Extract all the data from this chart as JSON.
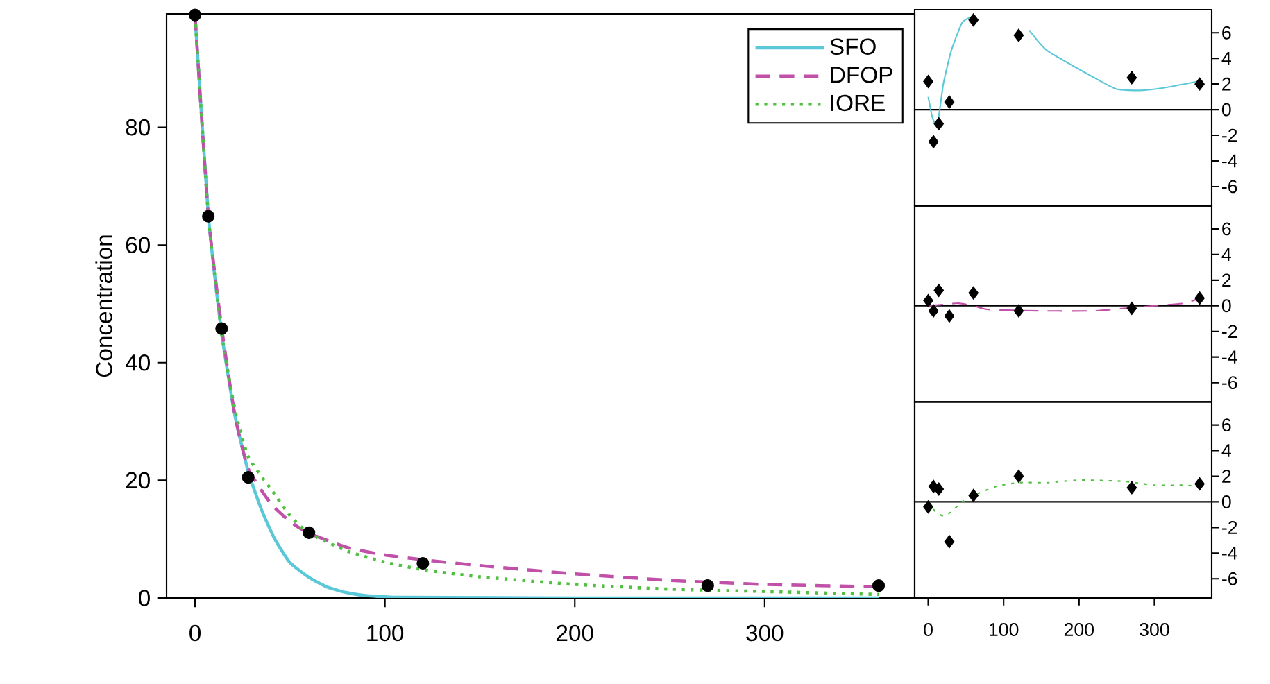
{
  "chart_data": [
    {
      "type": "line",
      "ylabel": "Concentration",
      "xlim": [
        -15,
        379
      ],
      "ylim": [
        0,
        99.3
      ],
      "xticks": [
        0,
        100,
        200,
        300
      ],
      "yticks": [
        0,
        20,
        40,
        60,
        80
      ],
      "legend": "top right",
      "series": [
        {
          "type": "scatter",
          "color": "#000000",
          "marker": "circle",
          "x": [
            0,
            7,
            14,
            28,
            60,
            120,
            270,
            360
          ],
          "values": [
            99.1,
            64.9,
            45.8,
            20.5,
            11.1,
            5.9,
            2.1,
            2.1
          ]
        },
        {
          "name": "SFO",
          "color": "#5bc8d8",
          "line_style": "solid",
          "x": [
            0,
            7,
            14,
            21,
            28,
            35,
            42,
            50,
            60,
            70,
            80,
            90,
            100,
            110,
            200,
            300,
            360
          ],
          "values": [
            99,
            65,
            45,
            31,
            21.5,
            15,
            10,
            6,
            3.5,
            1.8,
            0.9,
            0.4,
            0.2,
            0.1,
            0,
            0,
            0
          ]
        },
        {
          "name": "DFOP",
          "color": "#c050a8",
          "line_style": "dashed",
          "x": [
            0,
            7,
            14,
            21,
            28,
            40,
            50,
            60,
            80,
            100,
            120,
            150,
            200,
            250,
            300,
            360
          ],
          "values": [
            99,
            65,
            46,
            31,
            22,
            16,
            13,
            11,
            8.6,
            7.3,
            6.5,
            5.5,
            4.1,
            3,
            2.3,
            1.9
          ]
        },
        {
          "name": "IORE",
          "color": "#50c040",
          "line_style": "dotted",
          "x": [
            0,
            7,
            14,
            21,
            28,
            40,
            50,
            60,
            80,
            100,
            120,
            150,
            200,
            250,
            300,
            360
          ],
          "values": [
            99,
            65,
            45,
            32,
            24,
            18.5,
            14,
            11,
            8,
            6.1,
            4.8,
            3.6,
            2.3,
            1.5,
            1.1,
            0.6
          ]
        }
      ]
    },
    {
      "type": "line",
      "xlim": [
        -18,
        376
      ],
      "ylim": [
        -7.5,
        7.8
      ],
      "yticks": [
        -6,
        -4,
        -2,
        0,
        2,
        4,
        6
      ],
      "tick_labels": "y",
      "ref_lines": [
        {
          "axis": "y",
          "value": 0,
          "color": "#000000"
        }
      ],
      "series": [
        {
          "type": "scatter",
          "color": "#000000",
          "marker": "diamond",
          "x": [
            0,
            7,
            14,
            28,
            60,
            120,
            270,
            360
          ],
          "values": [
            2.2,
            -2.5,
            -1.1,
            0.6,
            7.0,
            5.8,
            2.5,
            2.0
          ]
        },
        {
          "color": "#5bc8d8",
          "line_style": "solid",
          "x": [
            0,
            5,
            10,
            14,
            20,
            30,
            45,
            60,
            75,
            106,
            134,
            158,
            220,
            250,
            281,
            312,
            357
          ],
          "values": [
            1.0,
            -0.5,
            -1.2,
            -0.5,
            2,
            4.5,
            6.8,
            7.3,
            null,
            null,
            6.2,
            4.6,
            2.5,
            1.6,
            1.5,
            1.7,
            2.2
          ]
        }
      ]
    },
    {
      "type": "line",
      "xlim": [
        -18,
        376
      ],
      "ylim": [
        -7.5,
        7.8
      ],
      "yticks": [
        -6,
        -4,
        -2,
        0,
        2,
        4,
        6
      ],
      "tick_labels": "y",
      "ref_lines": [
        {
          "axis": "y",
          "value": 0,
          "color": "#000000"
        }
      ],
      "series": [
        {
          "type": "scatter",
          "color": "#000000",
          "marker": "diamond",
          "x": [
            0,
            7,
            14,
            28,
            60,
            120,
            270,
            360
          ],
          "values": [
            0.4,
            -0.4,
            1.2,
            -0.8,
            1.0,
            -0.4,
            -0.2,
            0.6
          ]
        },
        {
          "color": "#c050a8",
          "line_style": "dashed",
          "x": [
            0,
            20,
            40,
            60,
            80,
            150,
            220,
            260,
            300,
            340,
            360
          ],
          "values": [
            0,
            0.1,
            0.2,
            0,
            -0.3,
            -0.4,
            -0.4,
            -0.2,
            0,
            0.2,
            0.6
          ]
        }
      ]
    },
    {
      "type": "line",
      "xlim": [
        -18,
        376
      ],
      "ylim": [
        -7.5,
        7.8
      ],
      "xticks": [
        0,
        100,
        200,
        300
      ],
      "yticks": [
        -6,
        -4,
        -2,
        0,
        2,
        4,
        6
      ],
      "ref_lines": [
        {
          "axis": "y",
          "value": 0,
          "color": "#000000"
        }
      ],
      "series": [
        {
          "type": "scatter",
          "color": "#000000",
          "marker": "diamond",
          "x": [
            0,
            7,
            14,
            28,
            60,
            120,
            270,
            360
          ],
          "values": [
            -0.4,
            1.2,
            1.0,
            -3.1,
            0.5,
            2.0,
            1.1,
            1.4
          ]
        },
        {
          "color": "#50c040",
          "line_style": "dotted",
          "x": [
            0,
            10,
            20,
            30,
            45,
            60,
            90,
            120,
            160,
            200,
            260,
            300,
            340,
            360
          ],
          "values": [
            0,
            -0.8,
            -1.1,
            -0.8,
            0,
            0.5,
            1.2,
            1.5,
            1.5,
            1.7,
            1.6,
            1.3,
            1.3,
            1.2
          ]
        }
      ]
    }
  ]
}
